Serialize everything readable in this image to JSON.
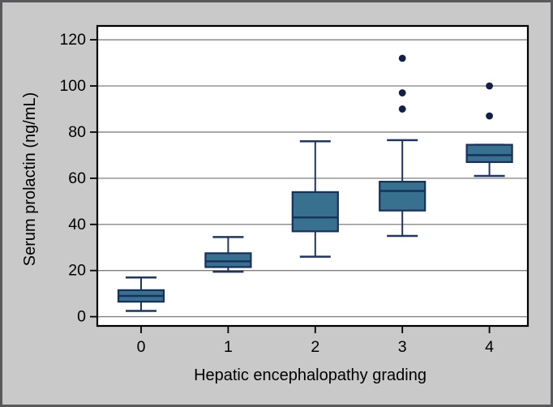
{
  "figure": {
    "background_color": "#c9c9c9",
    "frame_color": "#59595c"
  },
  "chart_data": {
    "type": "boxplot",
    "title": "",
    "xlabel": "Hepatic encephalopathy grading",
    "ylabel": "Serum prolactin (ng/mL)",
    "categories": [
      "0",
      "1",
      "2",
      "3",
      "4"
    ],
    "yticks": [
      0,
      20,
      40,
      60,
      80,
      100,
      120
    ],
    "ylim": [
      -4,
      126
    ],
    "grid": "horizontal",
    "legend": "none",
    "series": [
      {
        "category": "0",
        "whisker_low": 2.5,
        "q1": 6.5,
        "median": 9,
        "q3": 11.5,
        "whisker_high": 17,
        "outliers": []
      },
      {
        "category": "1",
        "whisker_low": 19.5,
        "q1": 21.5,
        "median": 24,
        "q3": 27.5,
        "whisker_high": 34.5,
        "outliers": []
      },
      {
        "category": "2",
        "whisker_low": 26,
        "q1": 37,
        "median": 43,
        "q3": 54,
        "whisker_high": 76,
        "outliers": []
      },
      {
        "category": "3",
        "whisker_low": 35,
        "q1": 46,
        "median": 54.5,
        "q3": 58.5,
        "whisker_high": 76.5,
        "outliers": [
          90,
          97,
          112
        ]
      },
      {
        "category": "4",
        "whisker_low": 61,
        "q1": 67,
        "median": 70,
        "q3": 74.5,
        "whisker_high": 74.5,
        "outliers": [
          87,
          100
        ]
      }
    ],
    "colors": {
      "box_fill": "#38708f",
      "box_border": "#17305e",
      "whisker": "#1d3666",
      "median": "#17305e",
      "outlier": "#111f49",
      "gridline": "#7f7f7f",
      "axis": "#000000",
      "plot_background": "#ffffff"
    }
  }
}
